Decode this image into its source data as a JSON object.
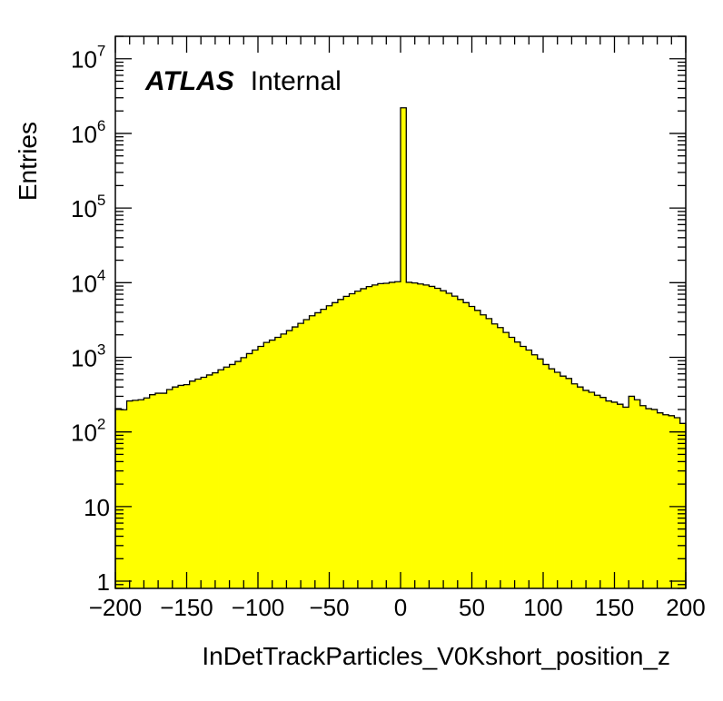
{
  "chart_data": {
    "type": "bar",
    "title": "",
    "xlabel": "InDetTrackParticles_V0Kshort_position_z",
    "ylabel": "Entries",
    "xlim": [
      -200,
      200
    ],
    "ylim": [
      0.8,
      20000000
    ],
    "yscale": "log",
    "grid": false,
    "fill_color": "#ffff00",
    "line_color": "#000000",
    "annotation": {
      "bold": "ATLAS",
      "normal": "Internal"
    },
    "x_ticks": [
      {
        "value": -200,
        "label": "−200"
      },
      {
        "value": -150,
        "label": "−150"
      },
      {
        "value": -100,
        "label": "−100"
      },
      {
        "value": -50,
        "label": "−50"
      },
      {
        "value": 0,
        "label": "0"
      },
      {
        "value": 50,
        "label": "50"
      },
      {
        "value": 100,
        "label": "100"
      },
      {
        "value": 150,
        "label": "150"
      },
      {
        "value": 200,
        "label": "200"
      }
    ],
    "y_ticks": [
      {
        "value": 1,
        "base": "1",
        "exp": ""
      },
      {
        "value": 10,
        "base": "10",
        "exp": ""
      },
      {
        "value": 100,
        "base": "10",
        "exp": "2"
      },
      {
        "value": 1000,
        "base": "10",
        "exp": "3"
      },
      {
        "value": 10000,
        "base": "10",
        "exp": "4"
      },
      {
        "value": 100000,
        "base": "10",
        "exp": "5"
      },
      {
        "value": 1000000,
        "base": "10",
        "exp": "6"
      },
      {
        "value": 10000000,
        "base": "10",
        "exp": "7"
      }
    ],
    "bin_edges_start": -200,
    "bin_width": 4,
    "values": [
      205,
      198,
      260,
      265,
      270,
      285,
      315,
      330,
      330,
      370,
      400,
      420,
      430,
      480,
      510,
      540,
      580,
      620,
      680,
      740,
      800,
      880,
      990,
      1120,
      1250,
      1400,
      1580,
      1700,
      1850,
      2050,
      2280,
      2550,
      2850,
      3200,
      3600,
      3950,
      4400,
      4900,
      5400,
      5950,
      6550,
      7100,
      7700,
      8300,
      8850,
      9300,
      9700,
      9800,
      10100,
      10300,
      2200000,
      10100,
      9900,
      9600,
      9300,
      8900,
      8400,
      7800,
      7200,
      6600,
      5950,
      5400,
      4800,
      4250,
      3700,
      3300,
      2800,
      2500,
      2150,
      1850,
      1600,
      1400,
      1250,
      1080,
      950,
      800,
      700,
      630,
      560,
      520,
      440,
      400,
      360,
      340,
      310,
      290,
      260,
      250,
      235,
      215,
      300,
      270,
      225,
      205,
      200,
      180,
      170,
      165,
      155,
      130
    ]
  }
}
